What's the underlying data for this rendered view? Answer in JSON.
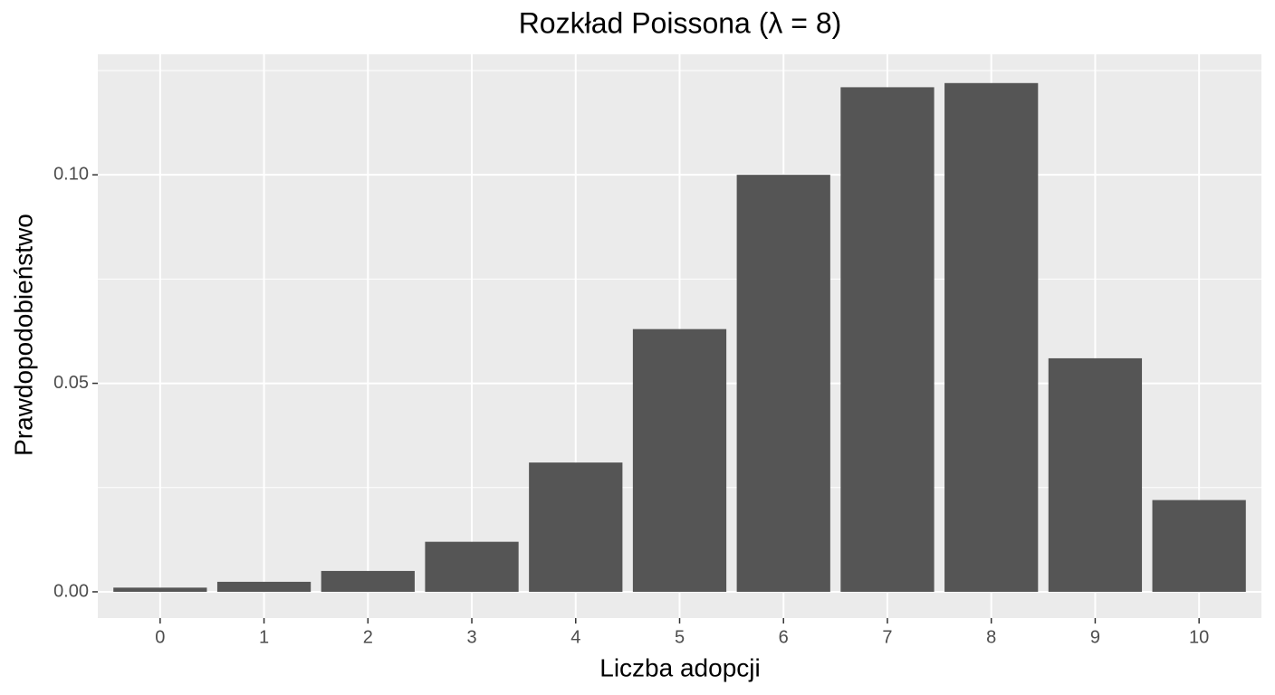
{
  "chart_data": {
    "type": "bar",
    "title": "Rozkład Poissona (λ = 8)",
    "x_label": "Liczba adopcji",
    "y_label": "Prawdopodobieństwo",
    "categories": [
      "0",
      "1",
      "2",
      "3",
      "4",
      "5",
      "6",
      "7",
      "8",
      "9",
      "10"
    ],
    "values": [
      0.001,
      0.0024,
      0.005,
      0.012,
      0.031,
      0.063,
      0.1,
      0.121,
      0.122,
      0.056,
      0.022
    ],
    "color": "#555555",
    "ylim": [
      -0.0063,
      0.1289
    ],
    "yticks": [
      {
        "value": 0,
        "label": "0.00"
      },
      {
        "value": 0.05,
        "label": "0.05"
      },
      {
        "value": 0.1,
        "label": "0.10"
      }
    ],
    "minor_yticks": [
      0.025,
      0.075,
      0.125
    ],
    "grid": true
  }
}
